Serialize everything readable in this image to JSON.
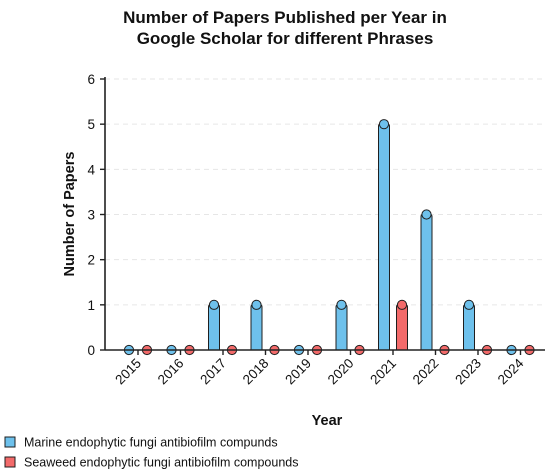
{
  "chart_data": {
    "type": "bar",
    "title_lines": [
      "Number of Papers Published per Year in",
      "Google Scholar for different Phrases"
    ],
    "xlabel": "Year",
    "ylabel": "Number of Papers",
    "categories": [
      "2015",
      "2016",
      "2017",
      "2018",
      "2019",
      "2020",
      "2021",
      "2022",
      "2023",
      "2024"
    ],
    "yticks": [
      "0",
      "1",
      "2",
      "3",
      "4",
      "5",
      "6"
    ],
    "ylim": [
      0,
      6
    ],
    "grid": true,
    "legend_position": "bottom-left",
    "series": [
      {
        "name": "Marine endophytic fungi antibiofilm compunds",
        "color": "#6ec1ec",
        "values": [
          0,
          0,
          1,
          1,
          0,
          1,
          5,
          3,
          1,
          0
        ]
      },
      {
        "name": "Seaweed endophytic fungi antibiofilm compounds",
        "color": "#f36a6a",
        "values": [
          0,
          0,
          0,
          0,
          0,
          0,
          1,
          0,
          0,
          0
        ]
      }
    ]
  }
}
